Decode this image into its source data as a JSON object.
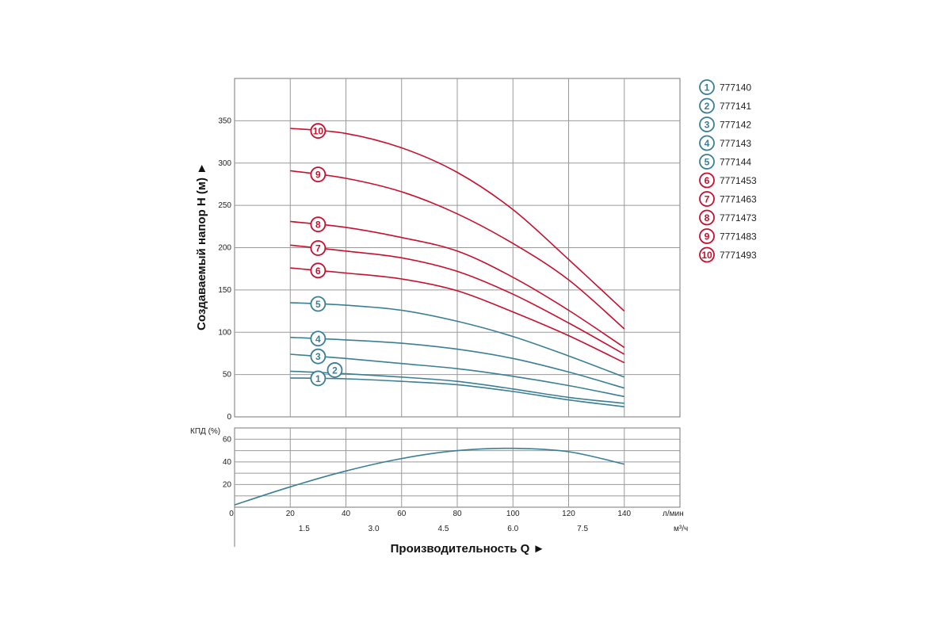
{
  "chart_data": [
    {
      "type": "line",
      "ylabel": "Создаваемый напор H (м) ►",
      "y_ticks": [
        "0",
        "50",
        "100",
        "150",
        "200",
        "250",
        "300",
        "350"
      ],
      "ylim": [
        0,
        400
      ],
      "xlim": [
        0,
        160
      ],
      "x_ticks_lmin": [
        "20",
        "40",
        "60",
        "80",
        "100",
        "120",
        "140"
      ],
      "grid": true,
      "legend_position": "right",
      "colors": {
        "blue": "#3a7f95",
        "red": "#c8102e",
        "grid": "#999999"
      },
      "series": [
        {
          "name": "777140",
          "marker": "1",
          "color": "blue",
          "x": [
            20,
            40,
            60,
            80,
            100,
            120,
            140
          ],
          "y": [
            46,
            45,
            42,
            38,
            30,
            20,
            12
          ]
        },
        {
          "name": "777141",
          "marker": "2",
          "color": "blue",
          "x": [
            20,
            40,
            60,
            80,
            100,
            120,
            140
          ],
          "y": [
            54,
            51,
            47,
            42,
            33,
            23,
            16
          ]
        },
        {
          "name": "777142",
          "marker": "3",
          "color": "blue",
          "x": [
            20,
            40,
            60,
            80,
            100,
            120,
            140
          ],
          "y": [
            74,
            69,
            63,
            57,
            48,
            37,
            24
          ]
        },
        {
          "name": "777143",
          "marker": "4",
          "color": "blue",
          "x": [
            20,
            40,
            60,
            80,
            100,
            120,
            140
          ],
          "y": [
            94,
            91,
            87,
            80,
            69,
            53,
            34
          ]
        },
        {
          "name": "777144",
          "marker": "5",
          "color": "blue",
          "x": [
            20,
            40,
            60,
            80,
            100,
            120,
            140
          ],
          "y": [
            135,
            132,
            126,
            113,
            95,
            72,
            47
          ]
        },
        {
          "name": "7771453",
          "marker": "6",
          "color": "red",
          "x": [
            20,
            40,
            60,
            80,
            100,
            120,
            140
          ],
          "y": [
            176,
            170,
            163,
            149,
            124,
            96,
            64
          ]
        },
        {
          "name": "7771463",
          "marker": "7",
          "color": "red",
          "x": [
            20,
            40,
            60,
            80,
            100,
            120,
            140
          ],
          "y": [
            203,
            196,
            188,
            172,
            145,
            111,
            74
          ]
        },
        {
          "name": "7771473",
          "marker": "8",
          "color": "red",
          "x": [
            20,
            40,
            60,
            80,
            100,
            120,
            140
          ],
          "y": [
            231,
            224,
            212,
            196,
            165,
            126,
            82
          ]
        },
        {
          "name": "7771483",
          "marker": "9",
          "color": "red",
          "x": [
            20,
            40,
            60,
            80,
            100,
            120,
            140
          ],
          "y": [
            291,
            282,
            266,
            240,
            205,
            162,
            104
          ]
        },
        {
          "name": "7771493",
          "marker": "10",
          "color": "red",
          "x": [
            20,
            40,
            60,
            80,
            100,
            120,
            140
          ],
          "y": [
            341,
            335,
            318,
            289,
            245,
            186,
            125
          ]
        }
      ]
    },
    {
      "type": "line",
      "ylabel": "КПД (%)",
      "y_ticks": [
        "20",
        "40",
        "60"
      ],
      "ylim": [
        0,
        70
      ],
      "xlim": [
        0,
        160
      ],
      "x_ticks_lmin": [
        "0",
        "20",
        "40",
        "60",
        "80",
        "100",
        "120",
        "140"
      ],
      "x_unit_lmin": "л/мин",
      "x_ticks_m3h": [
        "1.5",
        "3.0",
        "4.5",
        "6.0",
        "7.5"
      ],
      "x_unit_m3h": "м³/ч",
      "xlabel": "Производительность Q ►",
      "grid": true,
      "series": [
        {
          "x": [
            0,
            20,
            40,
            60,
            80,
            100,
            120,
            140
          ],
          "y": [
            2,
            18,
            32,
            43,
            50,
            52,
            49,
            38
          ]
        }
      ]
    }
  ]
}
